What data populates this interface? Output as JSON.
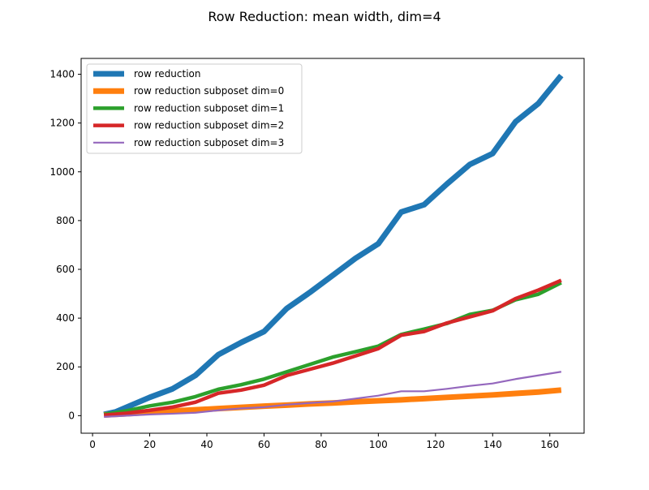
{
  "chart_data": {
    "type": "line",
    "title": "Row Reduction: mean width, dim=4",
    "xlabel": "",
    "ylabel": "",
    "xlim": [
      -4,
      172
    ],
    "ylim": [
      -72,
      1465
    ],
    "x_ticks": [
      0,
      20,
      40,
      60,
      80,
      100,
      120,
      140,
      160
    ],
    "y_ticks": [
      0,
      200,
      400,
      600,
      800,
      1000,
      1200,
      1400
    ],
    "grid": false,
    "legend_position": "top-left",
    "series": [
      {
        "name": "row reduction",
        "color": "#1f77b4",
        "width": "thick",
        "x": [
          4,
          8,
          12,
          20,
          28,
          36,
          44,
          52,
          60,
          68,
          76,
          84,
          92,
          100,
          108,
          116,
          124,
          132,
          140,
          148,
          156,
          164
        ],
        "y": [
          5,
          15,
          35,
          75,
          110,
          165,
          250,
          300,
          345,
          440,
          505,
          575,
          645,
          705,
          835,
          865,
          950,
          1030,
          1075,
          1205,
          1280,
          1395
        ]
      },
      {
        "name": "row reduction subposet dim=0",
        "color": "#ff7f0e",
        "width": "thick",
        "x": [
          4,
          12,
          20,
          28,
          36,
          44,
          52,
          60,
          68,
          76,
          84,
          92,
          100,
          108,
          116,
          124,
          132,
          140,
          148,
          156,
          164
        ],
        "y": [
          3,
          8,
          14,
          19,
          24,
          29,
          34,
          39,
          43,
          48,
          52,
          57,
          61,
          65,
          70,
          75,
          80,
          85,
          91,
          97,
          105
        ]
      },
      {
        "name": "row reduction subposet dim=1",
        "color": "#2ca02c",
        "width": "medium",
        "x": [
          4,
          12,
          20,
          28,
          36,
          44,
          52,
          60,
          68,
          76,
          84,
          92,
          100,
          108,
          116,
          124,
          132,
          140,
          148,
          156,
          164
        ],
        "y": [
          5,
          20,
          40,
          55,
          78,
          108,
          127,
          150,
          180,
          210,
          240,
          262,
          285,
          333,
          355,
          378,
          415,
          432,
          475,
          498,
          545
        ]
      },
      {
        "name": "row reduction subposet dim=2",
        "color": "#d62728",
        "width": "medium",
        "x": [
          4,
          12,
          20,
          28,
          36,
          44,
          52,
          60,
          68,
          76,
          84,
          92,
          100,
          108,
          116,
          124,
          132,
          140,
          148,
          156,
          164
        ],
        "y": [
          2,
          10,
          22,
          35,
          55,
          92,
          105,
          125,
          165,
          190,
          215,
          245,
          275,
          330,
          345,
          380,
          405,
          430,
          480,
          515,
          555
        ]
      },
      {
        "name": "row reduction subposet dim=3",
        "color": "#9467bd",
        "width": "thin",
        "x": [
          4,
          12,
          20,
          28,
          36,
          44,
          52,
          60,
          68,
          76,
          84,
          92,
          100,
          108,
          116,
          124,
          132,
          140,
          148,
          156,
          164
        ],
        "y": [
          -5,
          0,
          5,
          8,
          12,
          22,
          30,
          35,
          45,
          52,
          58,
          70,
          82,
          100,
          100,
          110,
          122,
          132,
          150,
          165,
          180
        ]
      }
    ]
  }
}
